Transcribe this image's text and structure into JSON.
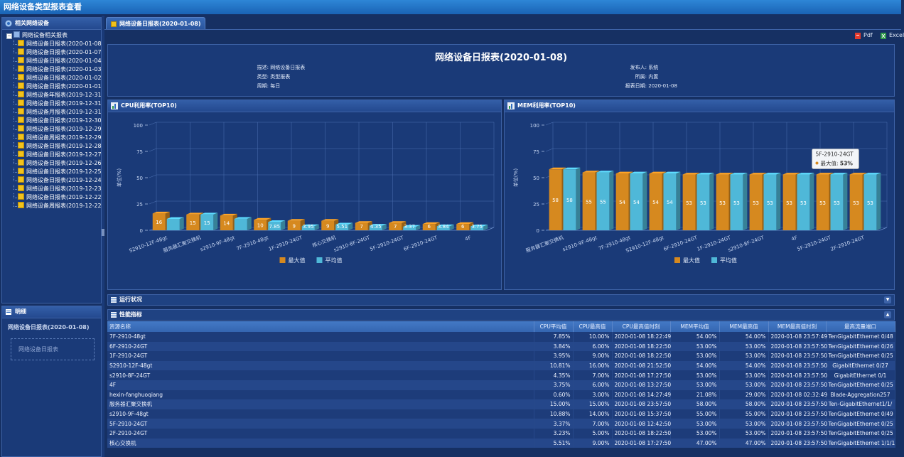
{
  "app_title": "网络设备类型报表查看",
  "sidebar": {
    "title": "相关网络设备",
    "root_label": "网络设备相关报表",
    "items": [
      "网络设备日报表(2020-01-08)",
      "网络设备日报表(2020-01-07)",
      "网络设备日报表(2020-01-04)",
      "网络设备日报表(2020-01-03)",
      "网络设备日报表(2020-01-02)",
      "网络设备日报表(2020-01-01)",
      "网络设备年报表(2019-12-31)",
      "网络设备日报表(2019-12-31)",
      "网络设备月报表(2019-12-31)",
      "网络设备日报表(2019-12-30)",
      "网络设备日报表(2019-12-29)",
      "网络设备周报表(2019-12-29)",
      "网络设备日报表(2019-12-28)",
      "网络设备日报表(2019-12-27)",
      "网络设备日报表(2019-12-26)",
      "网络设备日报表(2019-12-25)",
      "网络设备日报表(2019-12-24)",
      "网络设备日报表(2019-12-23)",
      "网络设备日报表(2019-12-22)",
      "网络设备周报表(2019-12-22)"
    ]
  },
  "detail": {
    "title": "明细",
    "name": "网络设备日报表(2020-01-08)",
    "description": "网络设备日报表"
  },
  "tab": {
    "label": "网络设备日报表(2020-01-08)"
  },
  "toolbar": {
    "pdf": "Pdf",
    "excel": "Excel"
  },
  "report": {
    "title": "网络设备日报表(2020-01-08)",
    "desc_label": "描述:",
    "desc_value": "网络设备日报表",
    "type_label": "类型:",
    "type_value": "类型报表",
    "period_label": "周期:",
    "period_value": "每日",
    "publisher_label": "发布人:",
    "publisher_value": "系统",
    "owner_label": "所属:",
    "owner_value": "内置",
    "date_label": "报表日期:",
    "date_value": "2020-01-08"
  },
  "chart_data": [
    {
      "type": "bar",
      "title": "CPU利用率(TOP10)",
      "ylabel": "单位(%)",
      "ylim": [
        0,
        100
      ],
      "yticks": [
        0,
        25,
        50,
        75,
        100
      ],
      "legend_position": "bottom",
      "categories": [
        "S2910-12F-48gt",
        "服务器汇聚交换机",
        "s2910-9F-48gt",
        "7F-2910-48gt",
        "1F-2910-24GT",
        "核心交换机",
        "s2910-8F-24GT",
        "5F-2910-24GT",
        "6F-2910-24GT",
        "4F"
      ],
      "series": [
        {
          "name": "最大值",
          "color": "#d6891f",
          "values": [
            16,
            15,
            14,
            10,
            9,
            9,
            7,
            7,
            6,
            6
          ]
        },
        {
          "name": "平均值",
          "color": "#4fb8d8",
          "values": [
            10.81,
            15,
            10.88,
            7.85,
            3.95,
            5.51,
            4.35,
            3.37,
            3.84,
            3.75
          ]
        }
      ],
      "bar_labels": [
        [
          "16",
          ""
        ],
        [
          "15",
          "15"
        ],
        [
          "14",
          ""
        ],
        [
          "10",
          "7.85"
        ],
        [
          "9",
          "3.95"
        ],
        [
          "9",
          "5.51"
        ],
        [
          "7",
          "4.35"
        ],
        [
          "7",
          "3.37"
        ],
        [
          "6",
          "3.84"
        ],
        [
          "6",
          "3.75"
        ]
      ]
    },
    {
      "type": "bar",
      "title": "MEM利用率(TOP10)",
      "ylabel": "单位(%)",
      "ylim": [
        0,
        100
      ],
      "yticks": [
        0,
        25,
        50,
        75,
        100
      ],
      "legend_position": "bottom",
      "categories": [
        "服务器汇聚交换机",
        "s2910-9F-48gt",
        "7F-2910-48gt",
        "S2910-12F-48gt",
        "6F-2910-24GT",
        "1F-2910-24GT",
        "s2910-8F-24GT",
        "4F",
        "5F-2910-24GT",
        "2F-2910-24GT"
      ],
      "series": [
        {
          "name": "最大值",
          "color": "#d6891f",
          "values": [
            58,
            55,
            54,
            54,
            53,
            53,
            53,
            53,
            53,
            53
          ]
        },
        {
          "name": "平均值",
          "color": "#4fb8d8",
          "values": [
            58,
            55,
            54,
            54,
            53,
            53,
            53,
            53,
            53,
            53
          ]
        }
      ],
      "bar_labels": [
        [
          "58",
          "58"
        ],
        [
          "55",
          "55"
        ],
        [
          "54",
          "54"
        ],
        [
          "54",
          "54"
        ],
        [
          "53",
          "53"
        ],
        [
          "53",
          "53"
        ],
        [
          "53",
          "53"
        ],
        [
          "53",
          "53"
        ],
        [
          "53",
          "53"
        ],
        [
          "53",
          "53"
        ]
      ],
      "tooltip": {
        "category": "5F-2910-24GT",
        "label": "最大值",
        "value": "53%"
      }
    }
  ],
  "sections": {
    "running": "运行状况",
    "perf": "性能指标"
  },
  "table": {
    "columns": [
      "资源名称",
      "CPU平均值",
      "CPU最高值",
      "CPU最高值时刻",
      "MEM平均值",
      "MEM最高值",
      "MEM最高值时刻",
      "最高流量端口"
    ],
    "rows": [
      [
        "7F-2910-48gt",
        "7.85%",
        "10.00%",
        "2020-01-08 18:22:49",
        "54.00%",
        "54.00%",
        "2020-01-08 23:57:49",
        "TenGigabitEthernet 0/48"
      ],
      [
        "6F-2910-24GT",
        "3.84%",
        "6.00%",
        "2020-01-08 18:22:50",
        "53.00%",
        "53.00%",
        "2020-01-08 23:57:50",
        "TenGigabitEthernet 0/26"
      ],
      [
        "1F-2910-24GT",
        "3.95%",
        "9.00%",
        "2020-01-08 18:22:50",
        "53.00%",
        "53.00%",
        "2020-01-08 23:57:50",
        "TenGigabitEthernet 0/25"
      ],
      [
        "S2910-12F-48gt",
        "10.81%",
        "16.00%",
        "2020-01-08 21:52:50",
        "54.00%",
        "54.00%",
        "2020-01-08 23:57:50",
        "GigabitEthernet 0/27"
      ],
      [
        "s2910-8F-24GT",
        "4.35%",
        "7.00%",
        "2020-01-08 17:27:50",
        "53.00%",
        "53.00%",
        "2020-01-08 23:57:50",
        "GigabitEthernet 0/1"
      ],
      [
        "4F",
        "3.75%",
        "6.00%",
        "2020-01-08 13:27:50",
        "53.00%",
        "53.00%",
        "2020-01-08 23:57:50",
        "TenGigabitEthernet 0/25"
      ],
      [
        "hexin-fanghuoqiang",
        "0.60%",
        "3.00%",
        "2020-01-08 14:27:49",
        "21.08%",
        "29.00%",
        "2020-01-08 02:32:49",
        "Blade-Aggregation257"
      ],
      [
        "服务器汇聚交换机",
        "15.00%",
        "15.00%",
        "2020-01-08 23:57:50",
        "58.00%",
        "58.00%",
        "2020-01-08 23:57:50",
        "Ten-GigabitEthernet1/1/"
      ],
      [
        "s2910-9F-48gt",
        "10.88%",
        "14.00%",
        "2020-01-08 15:37:50",
        "55.00%",
        "55.00%",
        "2020-01-08 23:57:50",
        "TenGigabitEthernet 0/49"
      ],
      [
        "5F-2910-24GT",
        "3.37%",
        "7.00%",
        "2020-01-08 12:42:50",
        "53.00%",
        "53.00%",
        "2020-01-08 23:57:50",
        "TenGigabitEthernet 0/25"
      ],
      [
        "2F-2910-24GT",
        "3.23%",
        "5.00%",
        "2020-01-08 18:22:50",
        "53.00%",
        "53.00%",
        "2020-01-08 23:57:50",
        "TenGigabitEthernet 0/25"
      ],
      [
        "核心交换机",
        "5.51%",
        "9.00%",
        "2020-01-08 17:27:50",
        "47.00%",
        "47.00%",
        "2020-01-08 23:57:50",
        "TenGigabitEthernet 1/1/1"
      ]
    ]
  }
}
